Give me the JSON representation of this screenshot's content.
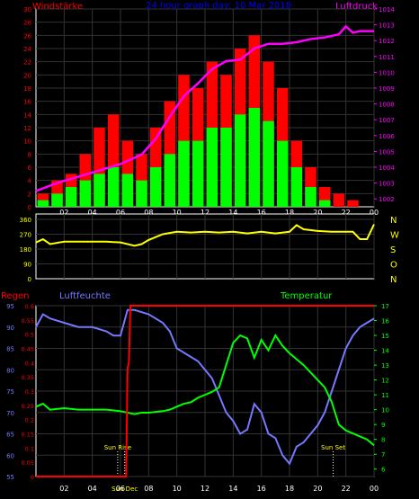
{
  "chart_data": [
    {
      "type": "bar",
      "title": "24 hour graph day: 10 Mar 2018",
      "left_axis_label": "Windstärke",
      "right_axis_label": "Luftdruck",
      "left_ticks": [
        "0",
        "2",
        "4",
        "6",
        "8",
        "10",
        "12",
        "14",
        "16",
        "18",
        "20",
        "22",
        "24",
        "26",
        "28",
        "30"
      ],
      "right_ticks": [
        "1002",
        "1003",
        "1004",
        "1005",
        "1006",
        "1007",
        "1008",
        "1009",
        "1010",
        "1011",
        "1012",
        "1013",
        "1014"
      ],
      "x_ticks": [
        "02",
        "04",
        "06",
        "08",
        "10",
        "12",
        "14",
        "16",
        "18",
        "20",
        "22",
        "00"
      ],
      "ylim": [
        0,
        30
      ],
      "pressure_ylim": [
        1001.5,
        1014
      ],
      "colors": {
        "gust": "#ff0000",
        "speed": "#00ff00",
        "pressure": "#ff00ff",
        "title": "#0000ff",
        "axis": "#ff00ff"
      },
      "series": [
        {
          "name": "Luftdruck",
          "x": [
            0.0,
            1.5,
            3.0,
            4.5,
            6.0,
            7.5,
            8.5,
            9.5,
            10.5,
            11.5,
            12.5,
            13.5,
            14.5,
            15.5,
            16.5,
            17.5,
            18.5,
            19.5,
            20.5,
            21.5,
            22.0,
            22.5,
            23.0,
            24.0
          ],
          "values": [
            1002.5,
            1003.0,
            1003.4,
            1003.8,
            1004.2,
            1004.8,
            1005.8,
            1007.2,
            1008.5,
            1009.3,
            1010.2,
            1010.7,
            1010.8,
            1011.5,
            1011.8,
            1011.8,
            1011.9,
            1012.1,
            1012.2,
            1012.4,
            1012.9,
            1012.5,
            1012.6,
            1012.6
          ]
        },
        {
          "name": "gust",
          "x": [
            0.5,
            1.5,
            2.5,
            3.5,
            4.5,
            5.5,
            6.5,
            7.5,
            8.5,
            9.5,
            10.5,
            11.5,
            12.5,
            13.5,
            14.5,
            15.5,
            16.5,
            17.5,
            18.5,
            19.5,
            20.5,
            21.5,
            22.5,
            23.5
          ],
          "values": [
            2,
            4,
            5,
            8,
            12,
            14,
            10,
            8,
            12,
            16,
            20,
            18,
            22,
            20,
            24,
            26,
            22,
            18,
            10,
            6,
            3,
            2,
            1,
            0
          ]
        },
        {
          "name": "speed",
          "x": [
            0.5,
            1.5,
            2.5,
            3.5,
            4.5,
            5.5,
            6.5,
            7.5,
            8.5,
            9.5,
            10.5,
            11.5,
            12.5,
            13.5,
            14.5,
            15.5,
            16.5,
            17.5,
            18.5,
            19.5,
            20.5,
            21.5,
            22.5,
            23.5
          ],
          "values": [
            1,
            2,
            3,
            4,
            5,
            6,
            5,
            4,
            6,
            8,
            10,
            10,
            12,
            12,
            14,
            15,
            13,
            10,
            6,
            3,
            1,
            0,
            0,
            0
          ]
        }
      ]
    },
    {
      "type": "line",
      "right_axis_label": "N W S O N",
      "right_ticks": [
        "N",
        "W",
        "S",
        "O",
        "N"
      ],
      "left_ticks": [
        "0",
        "90",
        "180",
        "270",
        "360"
      ],
      "x_ticks": [],
      "ylim": [
        0,
        360
      ],
      "colors": {
        "direction": "#ffff00",
        "axis": "#ffff00"
      },
      "series": [
        {
          "name": "direction",
          "x": [
            0.0,
            0.5,
            1.0,
            2.0,
            3.0,
            4.0,
            5.0,
            6.0,
            7.0,
            7.5,
            8.0,
            9.0,
            10.0,
            11.0,
            12.0,
            13.0,
            14.0,
            15.0,
            16.0,
            17.0,
            18.0,
            18.5,
            19.0,
            20.0,
            21.0,
            22.0,
            22.5,
            23.0,
            23.5,
            24.0
          ],
          "values": [
            220,
            240,
            210,
            225,
            225,
            225,
            225,
            220,
            200,
            210,
            235,
            270,
            285,
            280,
            285,
            280,
            285,
            275,
            285,
            275,
            285,
            325,
            300,
            290,
            285,
            285,
            285,
            240,
            240,
            330
          ]
        }
      ]
    },
    {
      "type": "line",
      "left_axis_label": "Regen",
      "second_axis_label": "Luftfeuchte",
      "right_axis_label": "Temperatur",
      "rain_ticks": [
        "0",
        "0.05",
        "0.1",
        "0.15",
        "0.2",
        "0.25",
        "0.3",
        "0.35",
        "0.4",
        "0.45",
        "0.5",
        "0.55",
        "0.6"
      ],
      "humidity_ticks": [
        "55",
        "60",
        "65",
        "70",
        "75",
        "80",
        "85",
        "90",
        "95"
      ],
      "temperature_ticks": [
        "6",
        "7",
        "8",
        "9",
        "10",
        "11",
        "12",
        "13",
        "14",
        "15",
        "16",
        "17"
      ],
      "x_ticks": [
        "02",
        "04",
        "06",
        "08",
        "10",
        "12",
        "14",
        "16",
        "18",
        "20",
        "22",
        "00"
      ],
      "annotations": [
        "Sun Rise",
        "Sun Dec",
        "Sun Set"
      ],
      "ylim_rain": [
        0,
        0.6
      ],
      "ylim_humidity": [
        55,
        95
      ],
      "ylim_temperature": [
        5.5,
        17
      ],
      "colors": {
        "rain": "#ff0000",
        "humidity": "#7777ff",
        "temperature": "#00ff00"
      },
      "series": [
        {
          "name": "rain",
          "x": [
            0,
            6.4,
            6.5,
            6.6,
            6.7,
            24
          ],
          "values": [
            0,
            0,
            0.38,
            0.4,
            0.6,
            0.6
          ]
        },
        {
          "name": "humidity",
          "x": [
            0,
            0.5,
            1,
            2,
            3,
            4,
            5,
            5.5,
            6,
            6.5,
            7,
            8,
            9,
            9.5,
            10,
            11,
            11.5,
            12,
            12.5,
            13,
            13.5,
            14,
            14.5,
            15,
            15.5,
            16,
            16.5,
            17,
            17.5,
            18,
            18.5,
            19,
            19.5,
            20,
            20.5,
            21,
            21.5,
            22,
            22.5,
            23,
            23.5,
            24
          ],
          "values": [
            90,
            93,
            92,
            91,
            90,
            90,
            89,
            88,
            88,
            94,
            94,
            93,
            91,
            89,
            85,
            83,
            82,
            80,
            78,
            74,
            70,
            68,
            65,
            66,
            72,
            70,
            65,
            64,
            60,
            58,
            62,
            63,
            65,
            67,
            70,
            75,
            80,
            85,
            88,
            90,
            91,
            92
          ]
        },
        {
          "name": "Temperatur",
          "x": [
            0,
            0.5,
            1,
            2,
            3,
            4,
            5,
            6,
            7,
            7.5,
            8,
            9,
            9.5,
            10,
            10.5,
            11,
            11.5,
            12,
            12.5,
            13,
            13.5,
            14,
            14.5,
            15,
            15.5,
            16,
            16.5,
            17,
            17.5,
            18,
            18.5,
            19,
            19.5,
            20,
            20.5,
            21,
            21.5,
            22,
            22.5,
            23,
            23.5,
            24
          ],
          "values": [
            10.2,
            10.4,
            10,
            10.1,
            10,
            10,
            10,
            9.9,
            9.7,
            9.8,
            9.8,
            9.9,
            10,
            10.2,
            10.4,
            10.5,
            10.8,
            11,
            11.2,
            11.5,
            13,
            14.5,
            15,
            14.8,
            13.5,
            14.7,
            14,
            15,
            14.3,
            13.8,
            13.4,
            13,
            12.5,
            12,
            11.5,
            10.5,
            9,
            8.6,
            8.4,
            8.2,
            8,
            7.6
          ]
        }
      ]
    }
  ]
}
